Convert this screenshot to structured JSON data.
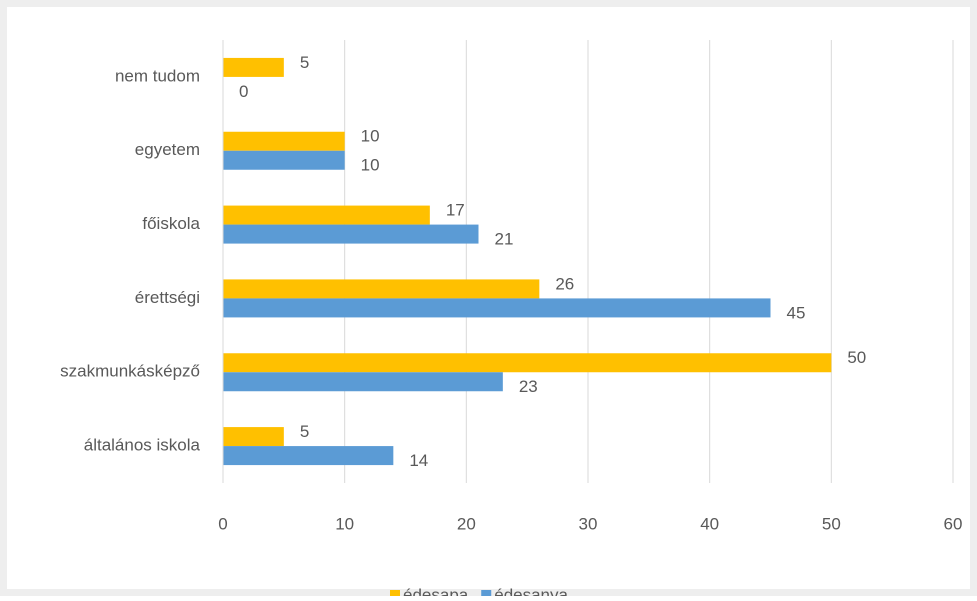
{
  "chart_data": {
    "type": "bar",
    "orientation": "horizontal",
    "categories": [
      "nem tudom",
      "egyetem",
      "főiskola",
      "érettségi",
      "szakmunkásképző",
      "általános iskola"
    ],
    "series": [
      {
        "name": "édesapa",
        "color": "#FFC000",
        "values": [
          5,
          10,
          17,
          26,
          50,
          5
        ]
      },
      {
        "name": "édesanya",
        "color": "#5B9BD5",
        "values": [
          0,
          10,
          21,
          45,
          23,
          14
        ]
      }
    ],
    "xlim": [
      0,
      60
    ],
    "xticks": [
      0,
      10,
      20,
      30,
      40,
      50,
      60
    ],
    "grid": true,
    "legend": "bottom"
  }
}
